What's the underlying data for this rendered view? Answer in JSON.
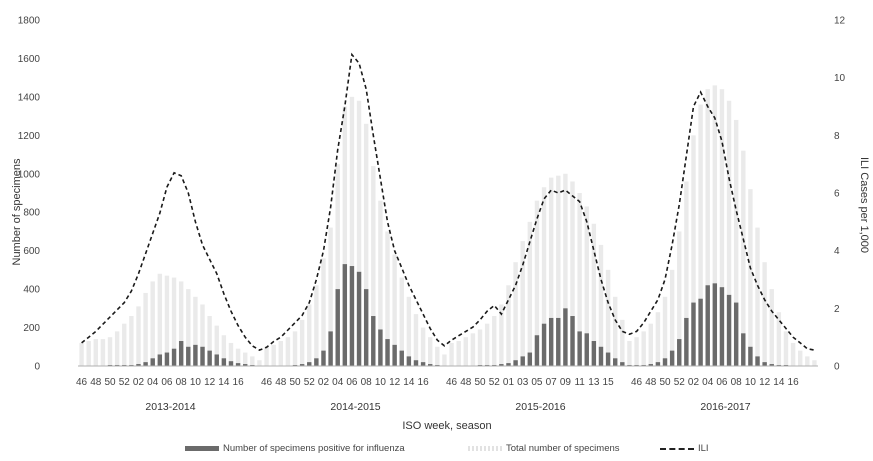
{
  "chart_data": {
    "type": "bar",
    "xlabel": "ISO week, season",
    "ylabel": "Number of specimens",
    "y2label": "ILI Cases per 1,000",
    "ylim": [
      0,
      1800
    ],
    "y_ticks": [
      0,
      200,
      400,
      600,
      800,
      1000,
      1200,
      1400,
      1600,
      1800
    ],
    "y2lim": [
      0,
      12
    ],
    "y2_ticks": [
      0,
      2,
      4,
      6,
      8,
      10,
      12
    ],
    "grid": false,
    "legend_position": "bottom",
    "colors": {
      "positive": "#6b6b6b",
      "total": "#e3e3e3",
      "ili": "#1a1a1a"
    },
    "seasons": [
      "2013-2014",
      "2014-2015",
      "2015-2016",
      "2016-2017"
    ],
    "x_tick_labels": [
      [
        "46",
        "48",
        "50",
        "52",
        "02",
        "04",
        "06",
        "08",
        "10",
        "12",
        "14",
        "16"
      ],
      [
        "46",
        "48",
        "50",
        "52",
        "02",
        "04",
        "06",
        "08",
        "10",
        "12",
        "14",
        "16"
      ],
      [
        "46",
        "48",
        "50",
        "52",
        "01",
        "03",
        "05",
        "07",
        "09",
        "11",
        "13",
        "15"
      ],
      [
        "46",
        "48",
        "50",
        "52",
        "02",
        "04",
        "06",
        "08",
        "10",
        "12",
        "14",
        "16"
      ]
    ],
    "series": [
      {
        "name": "Number of specimens positive for influenza",
        "values": [
          [
            0,
            0,
            0,
            0,
            5,
            5,
            5,
            5,
            10,
            20,
            40,
            60,
            70,
            90,
            130,
            100,
            110,
            100,
            80,
            60,
            40,
            25,
            15,
            10,
            5,
            0
          ],
          [
            0,
            0,
            0,
            0,
            5,
            10,
            20,
            40,
            80,
            180,
            400,
            530,
            520,
            490,
            400,
            260,
            190,
            140,
            110,
            80,
            50,
            30,
            20,
            10,
            5,
            0
          ],
          [
            0,
            0,
            0,
            0,
            5,
            5,
            5,
            10,
            15,
            30,
            50,
            70,
            160,
            220,
            250,
            250,
            300,
            260,
            180,
            170,
            130,
            100,
            70,
            40,
            20,
            5
          ],
          [
            5,
            5,
            10,
            20,
            40,
            80,
            140,
            250,
            330,
            350,
            420,
            430,
            410,
            370,
            330,
            170,
            100,
            50,
            20,
            10,
            5,
            5,
            0,
            0,
            0,
            0
          ]
        ]
      },
      {
        "name": "Total number of specimens",
        "values": [
          [
            120,
            130,
            140,
            140,
            150,
            180,
            220,
            260,
            310,
            380,
            440,
            480,
            470,
            460,
            440,
            400,
            360,
            320,
            260,
            210,
            160,
            120,
            90,
            70,
            50,
            30
          ],
          [
            100,
            110,
            130,
            150,
            180,
            240,
            320,
            420,
            560,
            720,
            1050,
            1350,
            1400,
            1380,
            1260,
            1040,
            860,
            700,
            580,
            460,
            360,
            270,
            200,
            150,
            100,
            60
          ],
          [
            120,
            130,
            150,
            170,
            190,
            220,
            260,
            320,
            420,
            540,
            650,
            750,
            860,
            930,
            980,
            990,
            1000,
            960,
            900,
            830,
            740,
            630,
            500,
            360,
            240,
            130
          ],
          [
            150,
            180,
            220,
            280,
            360,
            500,
            700,
            960,
            1200,
            1360,
            1440,
            1460,
            1440,
            1380,
            1280,
            1120,
            920,
            720,
            540,
            400,
            280,
            180,
            120,
            80,
            50,
            30
          ]
        ]
      },
      {
        "name": "ILI",
        "values": [
          [
            0.8,
            1.0,
            1.2,
            1.45,
            1.7,
            1.95,
            2.2,
            2.6,
            3.2,
            3.9,
            4.6,
            5.3,
            6.2,
            6.7,
            6.6,
            6.0,
            5.0,
            4.2,
            3.7,
            3.2,
            2.5,
            1.9,
            1.4,
            1.0,
            0.7,
            0.55
          ],
          [
            0.65,
            0.85,
            1.0,
            1.25,
            1.5,
            1.75,
            2.2,
            3.0,
            4.0,
            5.5,
            7.5,
            9.0,
            10.8,
            10.5,
            9.6,
            8.0,
            6.5,
            5.0,
            4.0,
            3.4,
            2.8,
            2.3,
            1.8,
            1.3,
            0.9,
            0.7
          ],
          [
            0.9,
            1.05,
            1.2,
            1.35,
            1.6,
            1.9,
            2.1,
            1.8,
            2.3,
            2.8,
            3.5,
            4.3,
            5.1,
            5.8,
            6.1,
            6.0,
            6.1,
            5.9,
            5.7,
            5.0,
            4.0,
            3.0,
            2.2,
            1.6,
            1.2,
            1.1
          ],
          [
            1.2,
            1.5,
            1.9,
            2.3,
            3.0,
            4.2,
            5.6,
            7.3,
            9.0,
            9.5,
            9.0,
            8.6,
            7.8,
            6.5,
            5.4,
            4.4,
            3.4,
            2.8,
            2.3,
            1.9,
            1.6,
            1.3,
            1.0,
            0.8,
            0.6,
            0.55
          ]
        ]
      }
    ]
  }
}
